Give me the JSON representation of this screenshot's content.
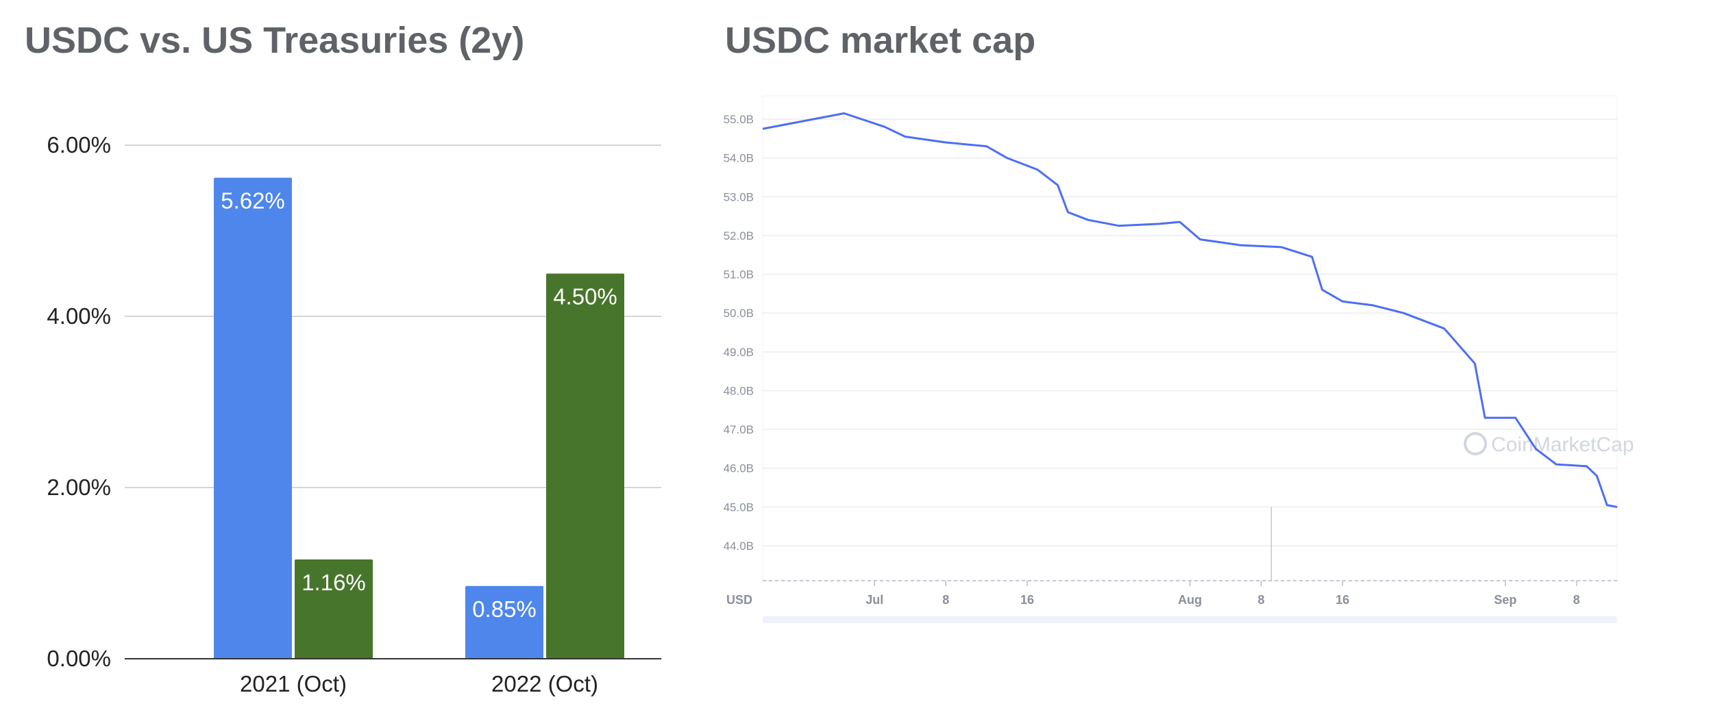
{
  "chart_data": [
    {
      "type": "bar",
      "title": "USDC vs. US Treasuries (2y)",
      "categories": [
        "2021 (Oct)",
        "2022 (Oct)"
      ],
      "series": [
        {
          "values": [
            5.62,
            0.85
          ],
          "labels": [
            "5.62%",
            "0.85%"
          ],
          "color": "#4f86ec"
        },
        {
          "values": [
            1.16,
            4.5
          ],
          "labels": [
            "1.16%",
            "4.50%"
          ],
          "color": "#48752c"
        }
      ],
      "y_ticks": [
        "0.00%",
        "2.00%",
        "4.00%",
        "6.00%"
      ],
      "ylim": [
        0,
        6
      ],
      "grid": true,
      "xlabel": "",
      "ylabel": ""
    },
    {
      "type": "line",
      "title": "USDC market cap",
      "ylabel": "USD",
      "y_ticks": [
        "44.0B",
        "45.0B",
        "46.0B",
        "47.0B",
        "48.0B",
        "49.0B",
        "50.0B",
        "51.0B",
        "52.0B",
        "53.0B",
        "54.0B",
        "55.0B"
      ],
      "ylim": [
        43.1,
        55.6
      ],
      "x_ticks": [
        "Jul",
        "8",
        "16",
        "Aug",
        "8",
        "16",
        "Sep",
        "8"
      ],
      "x_range": [
        "2022-06-20",
        "2022-09-12"
      ],
      "watermark": "CoinMarketCap",
      "color": "#4c6ef5",
      "grid": true,
      "series": [
        {
          "x": "2022-06-20",
          "y": 54.75
        },
        {
          "x": "2022-06-22",
          "y": 54.85
        },
        {
          "x": "2022-06-25",
          "y": 55.0
        },
        {
          "x": "2022-06-28",
          "y": 55.15
        },
        {
          "x": "2022-07-02",
          "y": 54.8
        },
        {
          "x": "2022-07-04",
          "y": 54.55
        },
        {
          "x": "2022-07-08",
          "y": 54.4
        },
        {
          "x": "2022-07-12",
          "y": 54.3
        },
        {
          "x": "2022-07-14",
          "y": 54.0
        },
        {
          "x": "2022-07-17",
          "y": 53.7
        },
        {
          "x": "2022-07-19",
          "y": 53.3
        },
        {
          "x": "2022-07-20",
          "y": 52.6
        },
        {
          "x": "2022-07-22",
          "y": 52.4
        },
        {
          "x": "2022-07-25",
          "y": 52.25
        },
        {
          "x": "2022-07-29",
          "y": 52.3
        },
        {
          "x": "2022-07-31",
          "y": 52.35
        },
        {
          "x": "2022-08-02",
          "y": 51.9
        },
        {
          "x": "2022-08-06",
          "y": 51.75
        },
        {
          "x": "2022-08-10",
          "y": 51.7
        },
        {
          "x": "2022-08-13",
          "y": 51.45
        },
        {
          "x": "2022-08-14",
          "y": 50.6
        },
        {
          "x": "2022-08-16",
          "y": 50.3
        },
        {
          "x": "2022-08-19",
          "y": 50.2
        },
        {
          "x": "2022-08-22",
          "y": 50.0
        },
        {
          "x": "2022-08-26",
          "y": 49.6
        },
        {
          "x": "2022-08-29",
          "y": 48.7
        },
        {
          "x": "2022-08-30",
          "y": 47.3
        },
        {
          "x": "2022-09-02",
          "y": 47.3
        },
        {
          "x": "2022-09-04",
          "y": 46.5
        },
        {
          "x": "2022-09-06",
          "y": 46.1
        },
        {
          "x": "2022-09-09",
          "y": 46.05
        },
        {
          "x": "2022-09-10",
          "y": 45.8
        },
        {
          "x": "2022-09-11",
          "y": 45.05
        },
        {
          "x": "2022-09-12",
          "y": 45.0
        }
      ]
    }
  ]
}
